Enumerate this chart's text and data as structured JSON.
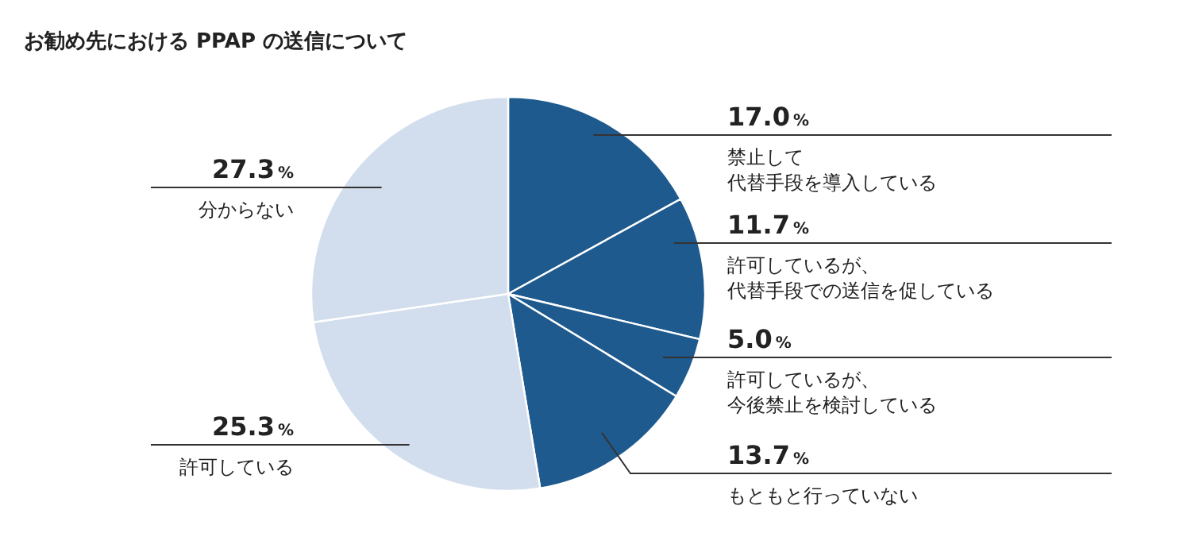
{
  "chart_data": {
    "type": "pie",
    "title": "お勧め先における PPAP の送信について",
    "categories": [
      "禁止して代替手段を導入している",
      "許可しているが、代替手段での送信を促している",
      "許可しているが、今後禁止を検討している",
      "もともと行っていない",
      "許可している",
      "分からない"
    ],
    "values": [
      17.0,
      11.7,
      5.0,
      13.7,
      25.3,
      27.3
    ],
    "value_labels": [
      "17.0%",
      "11.7%",
      "5.0%",
      "13.7%",
      "25.3%",
      "27.3%"
    ],
    "colors": [
      "#1f5a8f",
      "#1f5a8f",
      "#1f5a8f",
      "#1f5a8f",
      "#d2deed",
      "#d2deed"
    ]
  }
}
